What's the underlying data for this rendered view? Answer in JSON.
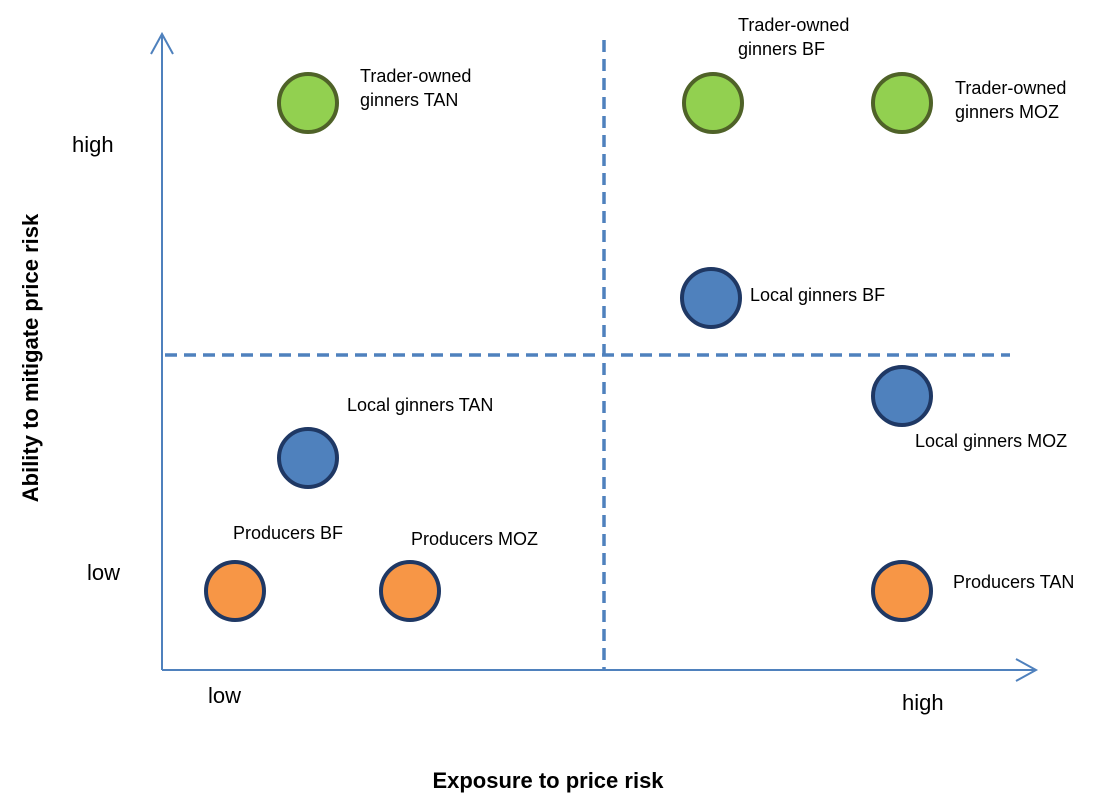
{
  "axes": {
    "x_title": "Exposure to price risk",
    "y_title": "Ability to mitigate price risk",
    "x_low": "low",
    "x_high": "high",
    "y_low": "low",
    "y_high": "high"
  },
  "colors": {
    "axis": "#4F81BD",
    "divider": "#4F81BD",
    "green_fill": "#92D050",
    "green_stroke": "#4F6228",
    "blue_fill": "#4F81BD",
    "blue_stroke": "#1F3864",
    "orange_fill": "#F79646",
    "orange_stroke": "#1F3864"
  },
  "points": [
    {
      "id": "trader-tan",
      "lines": [
        "Trader-owned",
        "ginners TAN"
      ],
      "color": "green"
    },
    {
      "id": "trader-bf",
      "lines": [
        "Trader-owned",
        "ginners BF"
      ],
      "color": "green"
    },
    {
      "id": "trader-moz",
      "lines": [
        "Trader-owned",
        "ginners MOZ"
      ],
      "color": "green"
    },
    {
      "id": "local-bf",
      "lines": [
        "Local ginners BF"
      ],
      "color": "blue"
    },
    {
      "id": "local-tan",
      "lines": [
        "Local ginners TAN"
      ],
      "color": "blue"
    },
    {
      "id": "local-moz",
      "lines": [
        "Local ginners MOZ"
      ],
      "color": "blue"
    },
    {
      "id": "producers-bf",
      "lines": [
        "Producers BF"
      ],
      "color": "orange"
    },
    {
      "id": "producers-moz",
      "lines": [
        "Producers MOZ"
      ],
      "color": "orange"
    },
    {
      "id": "producers-tan",
      "lines": [
        "Producers TAN"
      ],
      "color": "orange"
    }
  ]
}
